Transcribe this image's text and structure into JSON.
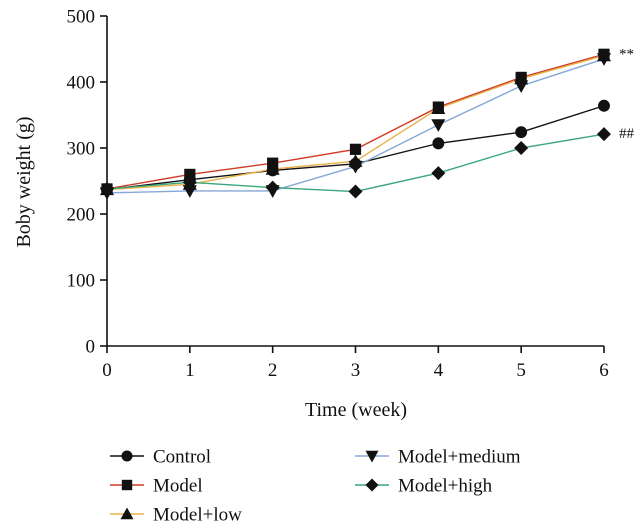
{
  "chart_data": {
    "type": "line",
    "xlabel": "Time (week)",
    "ylabel": "Boby weight (g)",
    "x": [
      0,
      1,
      2,
      3,
      4,
      5,
      6
    ],
    "xlim": [
      0,
      6
    ],
    "ylim": [
      0,
      500
    ],
    "xticks": [
      0,
      1,
      2,
      3,
      4,
      5,
      6
    ],
    "yticks": [
      0,
      100,
      200,
      300,
      400,
      500
    ],
    "grid": false,
    "legend_position": "bottom",
    "series": [
      {
        "name": "Control",
        "marker": "circle",
        "color": "#111111",
        "values": [
          237,
          252,
          266,
          276,
          307,
          324,
          364
        ]
      },
      {
        "name": "Model",
        "marker": "square",
        "color": "#d03a26",
        "values": [
          238,
          260,
          277,
          298,
          362,
          407,
          442
        ]
      },
      {
        "name": "Model+low",
        "marker": "triangle-up",
        "color": "#e8b24a",
        "values": [
          237,
          245,
          268,
          280,
          360,
          405,
          440
        ]
      },
      {
        "name": "Model+medium",
        "marker": "triangle-down",
        "color": "#86a8d8",
        "values": [
          232,
          235,
          235,
          272,
          335,
          394,
          435
        ]
      },
      {
        "name": "Model+high",
        "marker": "diamond",
        "color": "#3aa67a",
        "values": [
          238,
          248,
          240,
          234,
          262,
          300,
          321
        ]
      }
    ],
    "annotations": [
      {
        "text": "**",
        "x": 6,
        "y": 442
      },
      {
        "text": "##",
        "x": 6,
        "y": 321
      }
    ]
  }
}
